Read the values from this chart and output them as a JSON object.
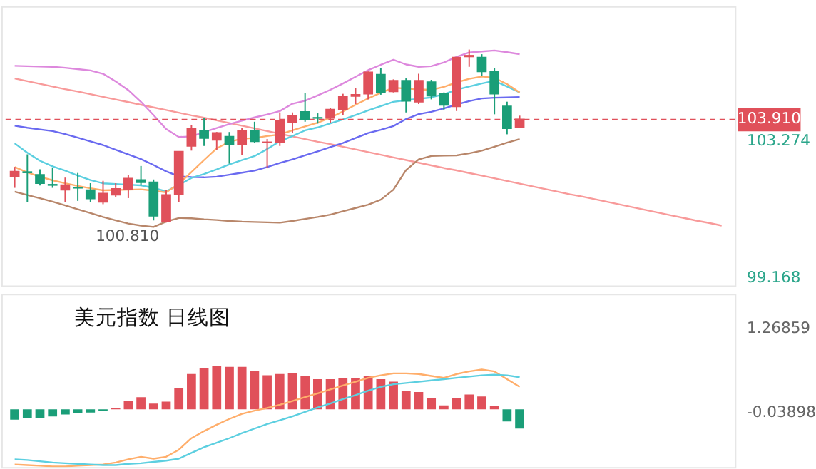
{
  "chart_data": [
    {
      "type": "candlestick",
      "tick_labels": "y",
      "ylim": [
        98.92,
        107.31
      ],
      "yticks": [
        99.168,
        103.274
      ],
      "categories": [
        null,
        null,
        null,
        null,
        null,
        null,
        null,
        null,
        null,
        null,
        null,
        null,
        null,
        null,
        null,
        null,
        null,
        null,
        null,
        null,
        null,
        null,
        null,
        null,
        null,
        null,
        null,
        null,
        null,
        null,
        null,
        null,
        null,
        null,
        null,
        null,
        null,
        null,
        null,
        null,
        null,
        null,
        null,
        null,
        null,
        null,
        null,
        null,
        null,
        null,
        null,
        null,
        null,
        null,
        null,
        null,
        null
      ],
      "ohlc": [
        [
          102.204,
          102.483,
          101.854,
          102.344
        ],
        [
          102.33,
          102.861,
          101.434,
          102.316
        ],
        [
          102.246,
          102.414,
          101.924,
          101.994
        ],
        [
          101.95,
          102.455,
          101.854,
          101.938
        ],
        [
          101.798,
          102.162,
          101.434,
          101.938
        ],
        [
          101.86,
          102.302,
          101.462,
          101.854
        ],
        [
          101.784,
          101.994,
          101.434,
          101.532
        ],
        [
          101.434,
          102.064,
          101.364,
          101.686
        ],
        [
          101.644,
          101.994,
          101.574,
          101.826
        ],
        [
          101.812,
          102.232,
          101.546,
          102.134
        ],
        [
          102.092,
          102.511,
          101.924,
          102.022
        ],
        [
          102.022,
          102.106,
          100.875,
          101.015
        ],
        [
          100.85,
          101.784,
          100.81,
          101.644
        ],
        [
          101.672,
          102.945,
          101.434,
          102.945
        ],
        [
          103.113,
          103.742,
          102.973,
          103.644
        ],
        [
          103.574,
          103.952,
          103.113,
          103.351
        ],
        [
          103.295,
          103.532,
          103.001,
          103.505
        ],
        [
          103.393,
          103.532,
          102.581,
          103.169
        ],
        [
          103.169,
          103.644,
          102.833,
          103.56
        ],
        [
          103.574,
          103.84,
          103.211,
          103.253
        ],
        [
          103.22,
          103.323,
          102.442,
          103.225
        ],
        [
          103.225,
          104.12,
          103.113,
          103.882
        ],
        [
          103.812,
          104.12,
          103.505,
          104.022
        ],
        [
          104.134,
          104.707,
          103.84,
          103.91
        ],
        [
          103.96,
          104.092,
          103.784,
          103.952
        ],
        [
          103.952,
          104.26,
          103.812,
          104.204
        ],
        [
          104.204,
          104.679,
          104.036,
          104.61
        ],
        [
          104.61,
          104.861,
          104.372,
          104.652
        ],
        [
          104.679,
          105.351,
          104.512,
          105.323
        ],
        [
          105.253,
          105.449,
          104.652,
          104.721
        ],
        [
          104.749,
          105.113,
          104.721,
          105.071
        ],
        [
          105.071,
          105.141,
          104.12,
          104.47
        ],
        [
          104.442,
          105.281,
          104.372,
          105.071
        ],
        [
          105.029,
          105.099,
          104.512,
          104.624
        ],
        [
          104.679,
          104.721,
          104.204,
          104.344
        ],
        [
          104.302,
          105.77,
          104.162,
          105.77
        ],
        [
          105.8,
          106.008,
          105.49,
          105.826
        ],
        [
          105.77,
          105.868,
          105.211,
          105.351
        ],
        [
          105.351,
          105.463,
          104.064,
          104.679
        ],
        [
          104.302,
          104.442,
          103.463,
          103.644
        ],
        [
          103.672,
          104.022,
          103.672,
          103.91
        ],
        null,
        null,
        null,
        null,
        null,
        null,
        null,
        null,
        null,
        null,
        null,
        null,
        null,
        null,
        null,
        null
      ],
      "colors": [
        "#e0505a",
        "#1a9e78",
        "#1a9e78",
        "#1a9e78",
        "#e0505a",
        "#1a9e78",
        "#1a9e78",
        "#e0505a",
        "#e0505a",
        "#e0505a",
        "#1a9e78",
        "#1a9e78",
        "#e0505a",
        "#e0505a",
        "#e0505a",
        "#1a9e78",
        "#e0505a",
        "#1a9e78",
        "#e0505a",
        "#1a9e78",
        "#e0505a",
        "#e0505a",
        "#e0505a",
        "#1a9e78",
        "#1a9e78",
        "#e0505a",
        "#e0505a",
        "#e0505a",
        "#e0505a",
        "#1a9e78",
        "#e0505a",
        "#1a9e78",
        "#e0505a",
        "#1a9e78",
        "#1a9e78",
        "#e0505a",
        "#e0505a",
        "#1a9e78",
        "#1a9e78",
        "#1a9e78",
        "#e0505a",
        null,
        null,
        null,
        null,
        null,
        null,
        null,
        null,
        null,
        null,
        null,
        null,
        null,
        null,
        null,
        null
      ],
      "series": [
        {
          "type": "line",
          "color": "#f89a9a",
          "values": [
            105.14,
            105.06,
            104.98,
            104.9,
            104.82,
            104.75,
            104.67,
            104.59,
            104.51,
            104.43,
            104.35,
            104.27,
            104.19,
            104.11,
            104.03,
            103.96,
            103.88,
            103.8,
            103.72,
            103.64,
            103.56,
            103.48,
            103.4,
            103.32,
            103.24,
            103.17,
            103.09,
            103.01,
            102.93,
            102.85,
            102.77,
            102.69,
            102.61,
            102.53,
            102.45,
            102.38,
            102.3,
            102.22,
            102.14,
            102.06,
            101.98,
            101.9,
            101.82,
            101.74,
            101.66,
            101.59,
            101.51,
            101.43,
            101.35,
            101.27,
            101.19,
            101.11,
            101.03,
            100.95,
            100.87,
            100.8,
            100.72
          ]
        },
        {
          "type": "line",
          "color": "#dd88dd",
          "values": [
            105.52,
            105.51,
            105.5,
            105.49,
            105.46,
            105.42,
            105.38,
            105.28,
            105.05,
            104.79,
            104.44,
            104.04,
            103.62,
            103.38,
            103.4,
            103.53,
            103.65,
            103.77,
            103.87,
            103.97,
            104.06,
            104.16,
            104.38,
            104.47,
            104.63,
            104.8,
            104.99,
            105.19,
            105.39,
            105.55,
            105.7,
            105.56,
            105.49,
            105.51,
            105.62,
            105.79,
            105.92,
            105.95,
            105.98,
            105.93,
            105.87,
            null,
            null,
            null,
            null,
            null,
            null,
            null,
            null,
            null,
            null,
            null,
            null,
            null,
            null,
            null,
            null
          ]
        },
        {
          "type": "line",
          "color": "#6a6af0",
          "values": [
            103.72,
            103.66,
            103.61,
            103.56,
            103.47,
            103.36,
            103.25,
            103.14,
            103.0,
            102.86,
            102.72,
            102.54,
            102.35,
            102.2,
            102.18,
            102.17,
            102.19,
            102.25,
            102.31,
            102.37,
            102.48,
            102.6,
            102.71,
            102.83,
            102.95,
            103.08,
            103.2,
            103.35,
            103.5,
            103.6,
            103.71,
            103.92,
            104.07,
            104.14,
            104.24,
            104.36,
            104.46,
            104.54,
            104.56,
            104.57,
            104.58,
            null,
            null,
            null,
            null,
            null,
            null,
            null,
            null,
            null,
            null,
            null,
            null,
            null,
            null,
            null,
            null
          ]
        },
        {
          "type": "line",
          "color": "#b8866a",
          "values": [
            101.74,
            101.64,
            101.54,
            101.44,
            101.33,
            101.21,
            101.1,
            100.98,
            100.88,
            100.78,
            100.72,
            100.68,
            100.84,
            100.95,
            100.94,
            100.91,
            100.89,
            100.86,
            100.84,
            100.83,
            100.82,
            100.81,
            100.86,
            100.92,
            100.98,
            101.05,
            101.15,
            101.25,
            101.35,
            101.5,
            101.8,
            102.39,
            102.71,
            102.81,
            102.82,
            102.83,
            102.89,
            102.97,
            103.09,
            103.21,
            103.32,
            null,
            null,
            null,
            null,
            null,
            null,
            null,
            null,
            null,
            null,
            null,
            null,
            null,
            null,
            null,
            null
          ]
        },
        {
          "type": "line",
          "color": "#5ccfe0",
          "values": [
            103.19,
            102.91,
            102.67,
            102.5,
            102.37,
            102.22,
            102.09,
            101.99,
            101.97,
            101.95,
            101.93,
            101.85,
            101.75,
            101.94,
            102.15,
            102.27,
            102.41,
            102.56,
            102.69,
            102.81,
            103.02,
            103.25,
            103.41,
            103.58,
            103.67,
            103.79,
            103.91,
            104.04,
            104.18,
            104.31,
            104.44,
            104.49,
            104.53,
            104.57,
            104.67,
            104.8,
            104.9,
            104.99,
            105.07,
            104.9,
            104.72,
            null,
            null,
            null,
            null,
            null,
            null,
            null,
            null,
            null,
            null,
            null,
            null,
            null,
            null,
            null,
            null
          ]
        },
        {
          "type": "line",
          "color": "#ffae6b",
          "values": [
            102.48,
            102.32,
            102.19,
            102.08,
            101.99,
            101.91,
            101.84,
            101.78,
            101.79,
            101.8,
            101.81,
            101.77,
            101.72,
            101.97,
            102.33,
            102.69,
            103.04,
            103.24,
            103.33,
            103.35,
            103.41,
            103.46,
            103.58,
            103.7,
            103.81,
            103.96,
            104.15,
            104.35,
            104.54,
            104.71,
            104.86,
            104.84,
            104.81,
            104.8,
            104.89,
            105.02,
            105.13,
            105.2,
            105.16,
            104.97,
            104.72,
            null,
            null,
            null,
            null,
            null,
            null,
            null,
            null,
            null,
            null,
            null,
            null,
            null,
            null,
            null,
            null
          ]
        }
      ],
      "ref_lines": [
        {
          "axis": "y",
          "value": 103.91,
          "label": "103.910",
          "color": "#e0505a",
          "line_style": "dashed"
        }
      ],
      "annotations": [
        {
          "text": "100.810",
          "y": 100.81
        }
      ]
    },
    {
      "type": "bar",
      "title": "美元指数 日线图",
      "tick_labels": "y",
      "ylim": [
        -0.9,
        1.8
      ],
      "yticks": [
        -0.03898,
        1.26859
      ],
      "categories": [
        null,
        null,
        null,
        null,
        null,
        null,
        null,
        null,
        null,
        null,
        null,
        null,
        null,
        null,
        null,
        null,
        null,
        null,
        null,
        null,
        null,
        null,
        null,
        null,
        null,
        null,
        null,
        null,
        null,
        null,
        null,
        null,
        null,
        null,
        null,
        null,
        null,
        null,
        null,
        null,
        null,
        null,
        null,
        null,
        null,
        null,
        null,
        null,
        null,
        null,
        null,
        null,
        null,
        null,
        null,
        null,
        null
      ],
      "series": [
        {
          "type": "bar",
          "values": [
            -0.16,
            -0.14,
            -0.13,
            -0.11,
            -0.08,
            -0.06,
            -0.05,
            -0.02,
            0.02,
            0.13,
            0.19,
            0.09,
            0.12,
            0.33,
            0.55,
            0.64,
            0.68,
            0.66,
            0.66,
            0.6,
            0.53,
            0.55,
            0.56,
            0.52,
            0.47,
            0.47,
            0.48,
            0.48,
            0.52,
            0.47,
            0.43,
            0.29,
            0.27,
            0.18,
            0.06,
            0.18,
            0.23,
            0.2,
            0.05,
            -0.19,
            -0.3,
            null,
            null,
            null,
            null,
            null,
            null,
            null,
            null,
            null,
            null,
            null,
            null,
            null,
            null,
            null,
            null
          ],
          "colors": [
            "#1a9e78",
            "#1a9e78",
            "#1a9e78",
            "#1a9e78",
            "#1a9e78",
            "#1a9e78",
            "#1a9e78",
            "#1a9e78",
            "#e0505a",
            "#e0505a",
            "#e0505a",
            "#e0505a",
            "#e0505a",
            "#e0505a",
            "#e0505a",
            "#e0505a",
            "#e0505a",
            "#e0505a",
            "#e0505a",
            "#e0505a",
            "#e0505a",
            "#e0505a",
            "#e0505a",
            "#e0505a",
            "#e0505a",
            "#e0505a",
            "#e0505a",
            "#e0505a",
            "#e0505a",
            "#e0505a",
            "#e0505a",
            "#e0505a",
            "#e0505a",
            "#e0505a",
            "#e0505a",
            "#e0505a",
            "#e0505a",
            "#e0505a",
            "#e0505a",
            "#1a9e78",
            "#1a9e78",
            null,
            null,
            null,
            null,
            null,
            null,
            null,
            null,
            null,
            null,
            null,
            null,
            null,
            null,
            null,
            null
          ]
        },
        {
          "type": "line",
          "color": "#ffae6b",
          "values": [
            -0.86,
            -0.87,
            -0.88,
            -0.89,
            -0.89,
            -0.88,
            -0.87,
            -0.86,
            -0.83,
            -0.78,
            -0.74,
            -0.77,
            -0.74,
            -0.63,
            -0.45,
            -0.34,
            -0.24,
            -0.15,
            -0.07,
            -0.02,
            0.02,
            0.07,
            0.13,
            0.19,
            0.25,
            0.31,
            0.37,
            0.43,
            0.49,
            0.53,
            0.56,
            0.56,
            0.55,
            0.52,
            0.49,
            0.55,
            0.59,
            0.62,
            0.59,
            0.47,
            0.35,
            null,
            null,
            null,
            null,
            null,
            null,
            null,
            null,
            null,
            null,
            null,
            null,
            null,
            null,
            null,
            null
          ]
        },
        {
          "type": "line",
          "color": "#5ccfe0",
          "values": [
            -0.78,
            -0.79,
            -0.81,
            -0.83,
            -0.84,
            -0.85,
            -0.86,
            -0.87,
            -0.87,
            -0.85,
            -0.84,
            -0.82,
            -0.8,
            -0.77,
            -0.68,
            -0.59,
            -0.52,
            -0.45,
            -0.37,
            -0.3,
            -0.23,
            -0.17,
            -0.11,
            -0.04,
            0.03,
            0.09,
            0.16,
            0.22,
            0.29,
            0.35,
            0.39,
            0.41,
            0.43,
            0.45,
            0.47,
            0.49,
            0.51,
            0.53,
            0.54,
            0.53,
            0.5,
            null,
            null,
            null,
            null,
            null,
            null,
            null,
            null,
            null,
            null,
            null,
            null,
            null,
            null,
            null,
            null
          ]
        }
      ]
    }
  ]
}
